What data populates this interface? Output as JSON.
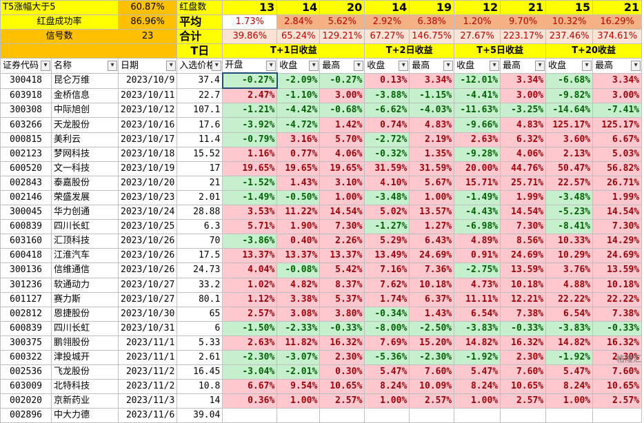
{
  "top": {
    "r1": {
      "label": "T5涨幅大于5",
      "pct": "60.87%",
      "label2": "红盘数",
      "counts": [
        "13",
        "14",
        "20",
        "14",
        "19",
        "12",
        "21",
        "15",
        "21"
      ]
    },
    "r2": {
      "label": "红盘成功率",
      "pct": "86.96%",
      "label2": "平均",
      "vals": [
        "1.73%",
        "2.84%",
        "5.62%",
        "2.92%",
        "6.38%",
        "1.20%",
        "9.70%",
        "10.32%",
        "16.29%"
      ]
    },
    "r3": {
      "label": "信号数",
      "count": "23",
      "label2": "合计",
      "vals": [
        "39.86%",
        "65.24%",
        "129.21%",
        "67.27%",
        "146.75%",
        "27.67%",
        "223.17%",
        "237.46%",
        "374.61%"
      ]
    }
  },
  "groups": {
    "t": "T日",
    "t1": "T+1日收益",
    "t2": "T+2日收益",
    "t5": "T+5日收益",
    "t20": "T+20收益"
  },
  "columns": [
    "证券代码",
    "名称",
    "日期",
    "入选价格",
    "开盘",
    "收盘",
    "最高",
    "收盘",
    "最高",
    "收盘",
    "最高",
    "收盘",
    "最高"
  ],
  "rows": [
    [
      "300418",
      "昆仑万维",
      "2023/10/9",
      "37.4",
      "-0.27%",
      "-2.09%",
      "-0.27%",
      "0.13%",
      "3.34%",
      "-12.01%",
      "3.34%",
      "-6.68%",
      "3.34%"
    ],
    [
      "603918",
      "金桥信息",
      "2023/10/11",
      "22.7",
      "2.47%",
      "-1.10%",
      "3.00%",
      "-3.88%",
      "-1.15%",
      "-4.41%",
      "3.00%",
      "-9.82%",
      "3.00%"
    ],
    [
      "300308",
      "中际旭创",
      "2023/10/12",
      "107.1",
      "-1.21%",
      "-4.42%",
      "-0.68%",
      "-6.62%",
      "-4.03%",
      "-11.63%",
      "-3.25%",
      "-14.64%",
      "-7.41%"
    ],
    [
      "603266",
      "天龙股份",
      "2023/10/16",
      "17.6",
      "-3.92%",
      "-4.72%",
      "1.42%",
      "0.74%",
      "4.83%",
      "-9.66%",
      "4.83%",
      "125.17%",
      "125.17%"
    ],
    [
      "000815",
      "美利云",
      "2023/10/17",
      "11.4",
      "-0.79%",
      "3.16%",
      "5.70%",
      "-2.72%",
      "2.19%",
      "2.63%",
      "6.32%",
      "3.60%",
      "6.67%"
    ],
    [
      "002123",
      "梦网科技",
      "2023/10/18",
      "15.52",
      "1.16%",
      "0.77%",
      "4.06%",
      "-0.32%",
      "1.35%",
      "-9.28%",
      "4.06%",
      "2.13%",
      "5.03%"
    ],
    [
      "600520",
      "文一科技",
      "2023/10/19",
      "17",
      "19.65%",
      "19.65%",
      "19.65%",
      "31.59%",
      "31.59%",
      "20.00%",
      "44.76%",
      "50.47%",
      "56.82%"
    ],
    [
      "002843",
      "泰嘉股份",
      "2023/10/20",
      "21",
      "-1.52%",
      "1.43%",
      "3.10%",
      "4.10%",
      "5.67%",
      "15.71%",
      "25.71%",
      "22.57%",
      "26.71%"
    ],
    [
      "002146",
      "荣盛发展",
      "2023/10/23",
      "2.01",
      "-1.49%",
      "-0.50%",
      "1.00%",
      "-3.48%",
      "1.00%",
      "-1.49%",
      "1.99%",
      "-3.48%",
      "1.99%"
    ],
    [
      "300045",
      "华力创通",
      "2023/10/24",
      "28.88",
      "3.53%",
      "11.22%",
      "14.54%",
      "5.02%",
      "13.57%",
      "-4.43%",
      "14.54%",
      "-5.23%",
      "14.54%"
    ],
    [
      "600839",
      "四川长虹",
      "2023/10/25",
      "6.3",
      "5.71%",
      "1.90%",
      "7.30%",
      "-1.27%",
      "1.27%",
      "-6.98%",
      "7.30%",
      "-8.41%",
      "7.30%"
    ],
    [
      "603160",
      "汇顶科技",
      "2023/10/26",
      "70",
      "-3.86%",
      "0.40%",
      "2.26%",
      "5.29%",
      "6.43%",
      "4.89%",
      "8.56%",
      "10.33%",
      "14.29%"
    ],
    [
      "600418",
      "江淮汽车",
      "2023/10/26",
      "17.5",
      "13.37%",
      "13.37%",
      "13.37%",
      "13.49%",
      "24.69%",
      "0.91%",
      "24.69%",
      "10.29%",
      "24.69%"
    ],
    [
      "300136",
      "信维通信",
      "2023/10/26",
      "24.73",
      "4.04%",
      "-0.08%",
      "5.42%",
      "7.16%",
      "7.36%",
      "-2.75%",
      "13.59%",
      "3.76%",
      "13.59%"
    ],
    [
      "301236",
      "软通动力",
      "2023/10/27",
      "33.2",
      "1.02%",
      "4.82%",
      "8.37%",
      "7.62%",
      "10.18%",
      "4.73%",
      "10.18%",
      "4.88%",
      "10.18%"
    ],
    [
      "601127",
      "赛力斯",
      "2023/10/27",
      "80.1",
      "1.12%",
      "3.38%",
      "5.37%",
      "1.74%",
      "6.37%",
      "11.11%",
      "12.21%",
      "22.22%",
      "22.22%"
    ],
    [
      "002812",
      "恩捷股份",
      "2023/10/30",
      "65",
      "2.57%",
      "3.08%",
      "3.80%",
      "-0.34%",
      "1.43%",
      "6.54%",
      "7.38%",
      "6.54%",
      "7.38%"
    ],
    [
      "600839",
      "四川长虹",
      "2023/10/31",
      "6",
      "-1.50%",
      "-2.33%",
      "-0.33%",
      "-8.00%",
      "-2.50%",
      "-3.83%",
      "-0.33%",
      "-3.83%",
      "-0.33%"
    ],
    [
      "300375",
      "鹏翎股份",
      "2023/11/1",
      "5.33",
      "2.63%",
      "11.82%",
      "16.32%",
      "7.69%",
      "15.20%",
      "14.82%",
      "16.32%",
      "14.82%",
      "16.32%"
    ],
    [
      "600322",
      "津投城开",
      "2023/11/1",
      "2.61",
      "-2.30%",
      "-3.07%",
      "2.30%",
      "-5.36%",
      "-2.30%",
      "-1.92%",
      "2.30%",
      "-1.92%",
      "2.30%"
    ],
    [
      "002536",
      "飞龙股份",
      "2023/11/2",
      "16.45",
      "-3.04%",
      "-2.01%",
      "0.30%",
      "5.47%",
      "7.60%",
      "5.47%",
      "7.60%",
      "5.47%",
      "7.60%"
    ],
    [
      "603009",
      "北特科技",
      "2023/11/2",
      "10.8",
      "6.67%",
      "9.54%",
      "10.65%",
      "8.24%",
      "10.09%",
      "8.24%",
      "10.65%",
      "8.24%",
      "10.65%"
    ],
    [
      "002020",
      "京新药业",
      "2023/11/3",
      "14",
      "0.36%",
      "1.00%",
      "2.57%",
      "1.00%",
      "2.57%",
      "1.00%",
      "2.57%",
      "1.00%",
      "2.57%"
    ],
    [
      "002896",
      "中大力德",
      "2023/11/6",
      "39.04",
      "",
      "",
      "",
      "",
      "",
      "",
      "",
      "",
      ""
    ]
  ],
  "watermark": "格隆汇",
  "colors": {
    "pos_bg": "#ffc7ce",
    "pos_fg": "#9c0006",
    "neg_bg": "#c6efce",
    "neg_fg": "#006100",
    "header_yellow": "#ffff00",
    "accent_orange": "#ffc000"
  }
}
